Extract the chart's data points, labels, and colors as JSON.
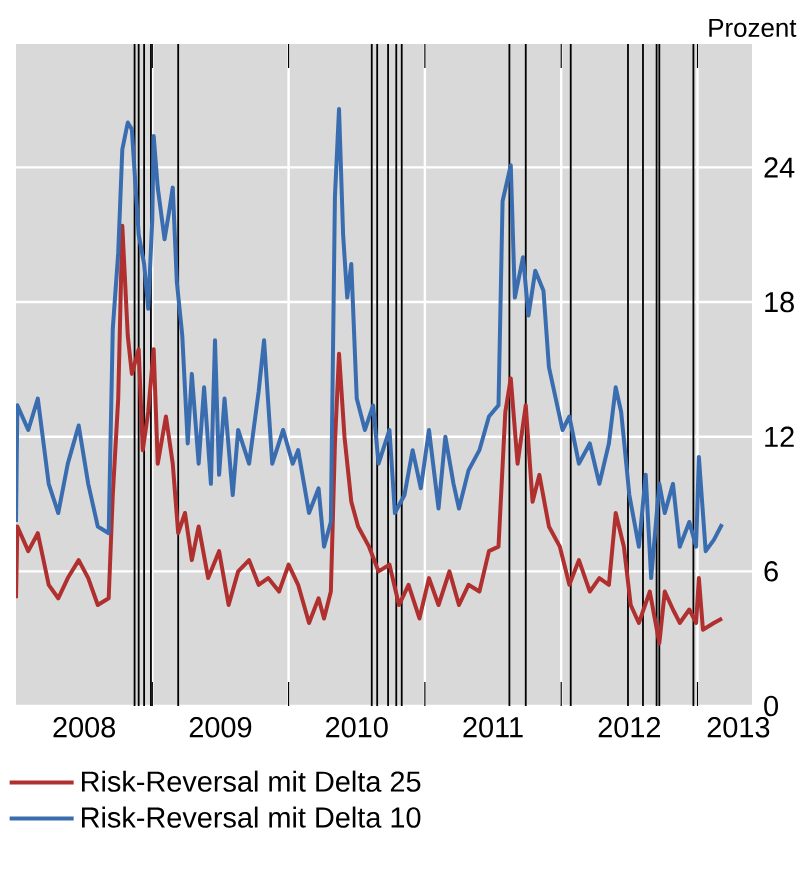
{
  "chart_data": {
    "type": "line",
    "ylabel": "Prozent",
    "xlim": [
      2008,
      2013.4
    ],
    "ylim": [
      0,
      29.5
    ],
    "yticks": [
      0,
      6,
      12,
      18,
      24
    ],
    "xticks": [
      {
        "value": 2008.5,
        "label": "2008"
      },
      {
        "value": 2009.5,
        "label": "2009"
      },
      {
        "value": 2010.5,
        "label": "2010"
      },
      {
        "value": 2011.5,
        "label": "2011"
      },
      {
        "value": 2012.5,
        "label": "2012"
      },
      {
        "value": 2013.3,
        "label": "2013"
      },
      {
        "value": 2009,
        "label": null
      },
      {
        "value": 2010,
        "label": null
      },
      {
        "value": 2011,
        "label": null
      },
      {
        "value": 2012,
        "label": null
      },
      {
        "value": 2013,
        "label": null
      }
    ],
    "grid": true,
    "legend": "bottom",
    "ref_lines": [
      {
        "axis": "x",
        "value": 2008.87,
        "color": "#000000"
      },
      {
        "axis": "x",
        "value": 2008.9,
        "color": "#000000"
      },
      {
        "axis": "x",
        "value": 2008.94,
        "color": "#000000"
      },
      {
        "axis": "x",
        "value": 2008.99,
        "color": "#000000"
      },
      {
        "axis": "x",
        "value": 2009.19,
        "color": "#000000"
      },
      {
        "axis": "x",
        "value": 2010.61,
        "color": "#000000"
      },
      {
        "axis": "x",
        "value": 2010.65,
        "color": "#000000"
      },
      {
        "axis": "x",
        "value": 2010.73,
        "color": "#000000"
      },
      {
        "axis": "x",
        "value": 2010.79,
        "color": "#000000"
      },
      {
        "axis": "x",
        "value": 2010.83,
        "color": "#000000"
      },
      {
        "axis": "x",
        "value": 2011.62,
        "color": "#000000"
      },
      {
        "axis": "x",
        "value": 2011.74,
        "color": "#000000"
      },
      {
        "axis": "x",
        "value": 2012.07,
        "color": "#000000"
      },
      {
        "axis": "x",
        "value": 2012.49,
        "color": "#000000"
      },
      {
        "axis": "x",
        "value": 2012.6,
        "color": "#000000"
      },
      {
        "axis": "x",
        "value": 2012.7,
        "color": "#000000"
      },
      {
        "axis": "x",
        "value": 2012.72,
        "color": "#000000"
      },
      {
        "axis": "x",
        "value": 2012.97,
        "color": "#000000"
      }
    ],
    "series": [
      {
        "name": "Risk-Reversal mit Delta 25",
        "color": "#b03030",
        "x": [
          2008.0,
          2008.01,
          2008.09,
          2008.16,
          2008.24,
          2008.31,
          2008.38,
          2008.46,
          2008.53,
          2008.6,
          2008.68,
          2008.71,
          2008.75,
          2008.78,
          2008.82,
          2008.85,
          2008.9,
          2008.93,
          2008.97,
          2009.01,
          2009.04,
          2009.1,
          2009.15,
          2009.19,
          2009.24,
          2009.29,
          2009.34,
          2009.41,
          2009.49,
          2009.56,
          2009.63,
          2009.71,
          2009.78,
          2009.85,
          2009.93,
          2010.0,
          2010.07,
          2010.15,
          2010.22,
          2010.26,
          2010.31,
          2010.34,
          2010.37,
          2010.41,
          2010.46,
          2010.51,
          2010.59,
          2010.66,
          2010.74,
          2010.81,
          2010.88,
          2010.96,
          2011.03,
          2011.1,
          2011.18,
          2011.25,
          2011.32,
          2011.4,
          2011.47,
          2011.54,
          2011.59,
          2011.63,
          2011.68,
          2011.74,
          2011.79,
          2011.84,
          2011.91,
          2011.99,
          2012.06,
          2012.13,
          2012.21,
          2012.28,
          2012.35,
          2012.4,
          2012.46,
          2012.51,
          2012.57,
          2012.65,
          2012.72,
          2012.76,
          2012.82,
          2012.87,
          2012.94,
          2012.99,
          2013.01,
          2013.04,
          2013.12,
          2013.18
        ],
        "values": [
          4.8,
          8.0,
          6.9,
          7.7,
          5.4,
          4.8,
          5.7,
          6.5,
          5.7,
          4.5,
          4.8,
          9.4,
          13.7,
          21.4,
          16.5,
          14.8,
          15.9,
          11.4,
          13.1,
          15.9,
          10.8,
          12.9,
          10.8,
          7.7,
          8.6,
          6.5,
          8.0,
          5.7,
          6.9,
          4.5,
          6.0,
          6.5,
          5.4,
          5.7,
          5.1,
          6.3,
          5.4,
          3.7,
          4.8,
          3.9,
          5.1,
          11.7,
          15.7,
          12.0,
          9.1,
          8.0,
          7.1,
          6.0,
          6.3,
          4.5,
          5.4,
          3.9,
          5.7,
          4.5,
          6.0,
          4.5,
          5.4,
          5.1,
          6.9,
          7.1,
          13.1,
          14.6,
          10.8,
          13.4,
          9.1,
          10.3,
          8.0,
          7.1,
          5.4,
          6.5,
          5.1,
          5.7,
          5.4,
          8.6,
          7.1,
          4.5,
          3.7,
          5.1,
          2.8,
          5.1,
          4.3,
          3.7,
          4.3,
          3.7,
          5.7,
          3.4,
          3.7,
          3.9
        ]
      },
      {
        "name": "Risk-Reversal mit Delta 10",
        "color": "#3a6db0",
        "x": [
          2008.0,
          2008.01,
          2008.09,
          2008.16,
          2008.24,
          2008.31,
          2008.38,
          2008.46,
          2008.53,
          2008.6,
          2008.68,
          2008.71,
          2008.75,
          2008.78,
          2008.82,
          2008.85,
          2008.9,
          2008.94,
          2008.97,
          2009.0,
          2009.01,
          2009.04,
          2009.09,
          2009.12,
          2009.15,
          2009.18,
          2009.22,
          2009.26,
          2009.29,
          2009.34,
          2009.38,
          2009.43,
          2009.46,
          2009.49,
          2009.53,
          2009.59,
          2009.63,
          2009.71,
          2009.78,
          2009.82,
          2009.88,
          2009.96,
          2010.03,
          2010.07,
          2010.15,
          2010.22,
          2010.26,
          2010.31,
          2010.34,
          2010.37,
          2010.4,
          2010.43,
          2010.46,
          2010.5,
          2010.56,
          2010.62,
          2010.66,
          2010.74,
          2010.78,
          2010.85,
          2010.91,
          2010.97,
          2011.03,
          2011.1,
          2011.15,
          2011.21,
          2011.25,
          2011.32,
          2011.4,
          2011.47,
          2011.54,
          2011.57,
          2011.63,
          2011.66,
          2011.72,
          2011.76,
          2011.81,
          2011.87,
          2011.91,
          2011.96,
          2012.01,
          2012.06,
          2012.13,
          2012.21,
          2012.28,
          2012.35,
          2012.4,
          2012.44,
          2012.5,
          2012.57,
          2012.62,
          2012.66,
          2012.72,
          2012.76,
          2012.82,
          2012.87,
          2012.94,
          2012.99,
          2013.01,
          2013.06,
          2013.12,
          2013.18
        ],
        "values": [
          8.2,
          13.4,
          12.3,
          13.7,
          9.9,
          8.6,
          10.8,
          12.5,
          9.9,
          8.0,
          7.7,
          16.8,
          20.2,
          24.8,
          26.0,
          25.7,
          21.0,
          19.7,
          17.7,
          21.7,
          25.4,
          23.1,
          20.8,
          21.9,
          23.1,
          18.9,
          16.5,
          11.7,
          14.8,
          10.8,
          14.2,
          9.9,
          16.3,
          10.3,
          13.7,
          9.4,
          12.3,
          10.8,
          14.0,
          16.3,
          10.8,
          12.3,
          10.8,
          11.4,
          8.6,
          9.7,
          7.1,
          8.2,
          22.7,
          26.6,
          21.0,
          18.2,
          19.7,
          13.7,
          12.3,
          13.4,
          10.8,
          12.3,
          8.6,
          9.4,
          11.4,
          9.7,
          12.3,
          8.8,
          12.0,
          9.9,
          8.8,
          10.5,
          11.4,
          12.9,
          13.4,
          22.5,
          24.1,
          18.2,
          20.0,
          17.4,
          19.4,
          18.5,
          15.1,
          13.7,
          12.3,
          12.9,
          10.8,
          11.7,
          9.9,
          11.7,
          14.2,
          13.1,
          9.4,
          7.1,
          10.3,
          5.7,
          9.9,
          8.6,
          9.9,
          7.1,
          8.2,
          7.1,
          11.1,
          6.9,
          7.4,
          8.1
        ]
      }
    ]
  }
}
